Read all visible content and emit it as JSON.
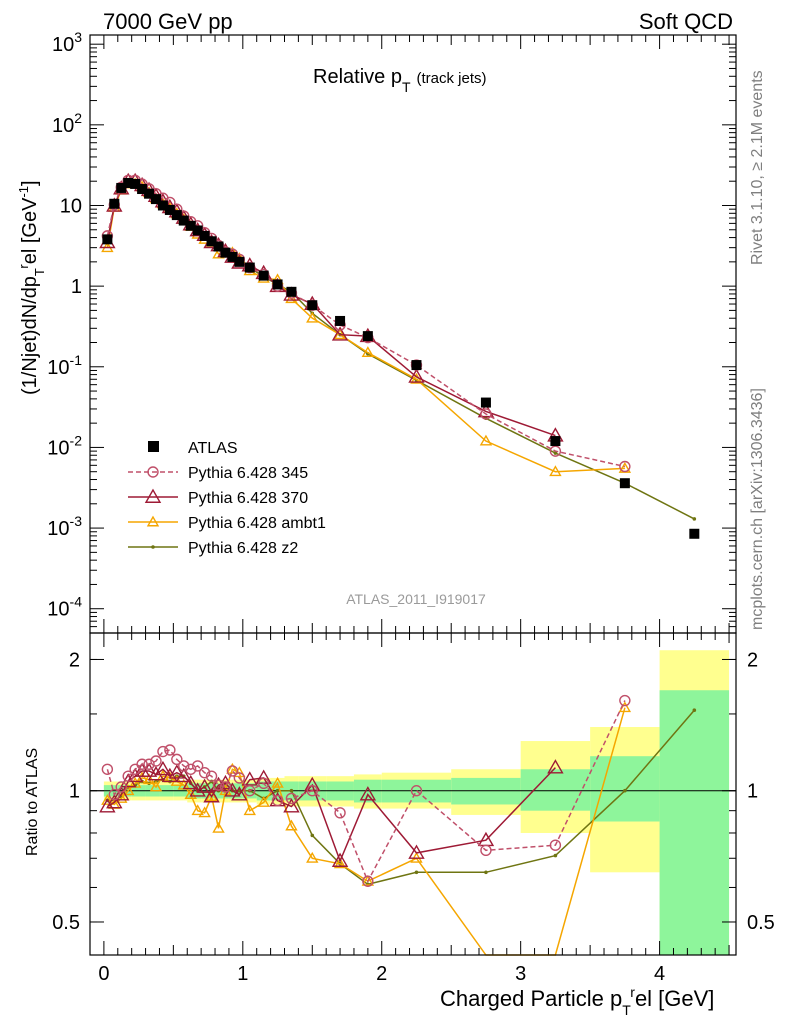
{
  "header": {
    "left": "7000 GeV pp",
    "right": "Soft QCD"
  },
  "side_labels": {
    "rivet": "Rivet 3.1.10, ≥ 2.1M events",
    "mcplots": "mcplots.cern.ch [arXiv:1306.3436]"
  },
  "analysis_id": "ATLAS_2011_I919017",
  "title": {
    "main": "Relative p",
    "sub": "T",
    "suffix": "(track jets)"
  },
  "colors": {
    "ATLAS": "#000000",
    "p345": "#c0506a",
    "p370": "#9e1a35",
    "ambt1": "#f5a600",
    "z2": "#6f7512",
    "band_inner": "#8ef59b",
    "band_outer": "#ffff8f"
  },
  "chart_data": [
    {
      "type": "scatter",
      "panel": "main",
      "ylabel": "(1/Njet)dN/dp_T^rel [GeV^-1]",
      "yscale": "log",
      "ylim": [
        5e-05,
        1300
      ],
      "xlim": [
        -0.1,
        4.55
      ],
      "yticks": [
        "10^-4",
        "10^-3",
        "10^-2",
        "10^-1",
        "1",
        "10",
        "10^2",
        "10^3"
      ],
      "legend": {
        "placement": "left-center",
        "entries": [
          "ATLAS",
          "Pythia 6.428 345",
          "Pythia 6.428 370",
          "Pythia 6.428 ambt1",
          "Pythia 6.428 z2"
        ]
      },
      "series": [
        {
          "name": "ATLAS",
          "x": [
            0.025,
            0.075,
            0.125,
            0.175,
            0.225,
            0.275,
            0.325,
            0.375,
            0.425,
            0.475,
            0.525,
            0.575,
            0.625,
            0.675,
            0.725,
            0.775,
            0.825,
            0.875,
            0.925,
            0.975,
            1.05,
            1.15,
            1.25,
            1.35,
            1.5,
            1.7,
            1.9,
            2.25,
            2.75,
            3.25,
            3.75,
            4.25
          ],
          "y": [
            3.8,
            10.5,
            16.5,
            19,
            18.5,
            16,
            14,
            12,
            10,
            8.8,
            7.6,
            6.5,
            5.6,
            4.9,
            4.2,
            3.6,
            3.1,
            2.6,
            2.3,
            2.0,
            1.7,
            1.35,
            1.05,
            0.85,
            0.58,
            0.37,
            0.24,
            0.105,
            0.036,
            0.012,
            0.0036,
            0.00085
          ]
        },
        {
          "name": "Pythia 6.428 345",
          "style": "dashed-circle",
          "x": [
            0.025,
            0.075,
            0.125,
            0.175,
            0.225,
            0.275,
            0.325,
            0.375,
            0.425,
            0.475,
            0.525,
            0.575,
            0.625,
            0.675,
            0.725,
            0.775,
            0.825,
            0.875,
            0.925,
            0.975,
            1.05,
            1.15,
            1.25,
            1.35,
            1.5,
            1.7,
            1.9,
            2.25,
            2.75,
            3.25,
            3.75
          ],
          "y": [
            4.2,
            10.2,
            16.8,
            20.5,
            20.5,
            18.4,
            16.1,
            14.0,
            12.3,
            10.9,
            9.0,
            7.4,
            6.3,
            5.6,
            4.6,
            3.9,
            3.2,
            2.65,
            2.5,
            2.15,
            1.7,
            1.4,
            1.0,
            0.82,
            0.58,
            0.33,
            0.23,
            0.105,
            0.026,
            0.009,
            0.0058
          ]
        },
        {
          "name": "Pythia 6.428 370",
          "style": "solid-triangle",
          "x": [
            0.025,
            0.075,
            0.125,
            0.175,
            0.225,
            0.275,
            0.325,
            0.375,
            0.425,
            0.475,
            0.525,
            0.575,
            0.625,
            0.675,
            0.725,
            0.775,
            0.825,
            0.875,
            0.925,
            0.975,
            1.05,
            1.15,
            1.25,
            1.35,
            1.5,
            1.7,
            1.9,
            2.25,
            2.75,
            3.25
          ],
          "y": [
            3.5,
            9.9,
            16.2,
            20.0,
            20.0,
            17.8,
            15.5,
            13.1,
            11.2,
            9.5,
            8.4,
            7.0,
            5.8,
            4.9,
            4.3,
            3.5,
            3.2,
            2.7,
            2.3,
            1.95,
            1.8,
            1.45,
            1.0,
            0.78,
            0.6,
            0.25,
            0.24,
            0.075,
            0.028,
            0.014
          ]
        },
        {
          "name": "Pythia 6.428 ambt1",
          "style": "solid-triangle",
          "x": [
            0.025,
            0.075,
            0.125,
            0.175,
            0.225,
            0.275,
            0.325,
            0.375,
            0.425,
            0.475,
            0.525,
            0.575,
            0.625,
            0.675,
            0.725,
            0.775,
            0.825,
            0.875,
            0.925,
            0.975,
            1.05,
            1.15,
            1.25,
            1.35,
            1.5,
            1.7,
            1.9,
            2.25,
            2.75,
            3.25,
            3.75
          ],
          "y": [
            3.0,
            9.5,
            15.5,
            18.5,
            18.5,
            17.0,
            14.4,
            12.1,
            10.5,
            9.2,
            7.9,
            6.7,
            5.5,
            4.4,
            3.8,
            3.5,
            2.5,
            2.6,
            2.6,
            2.2,
            1.55,
            1.25,
            1.2,
            0.7,
            0.4,
            0.25,
            0.15,
            0.07,
            0.012,
            0.005,
            0.0055
          ]
        },
        {
          "name": "Pythia 6.428 z2",
          "style": "solid-dot",
          "x": [
            0.025,
            0.075,
            0.125,
            0.175,
            0.225,
            0.275,
            0.325,
            0.375,
            0.425,
            0.475,
            0.525,
            0.575,
            0.625,
            0.675,
            0.725,
            0.775,
            0.825,
            0.875,
            0.925,
            0.975,
            1.05,
            1.15,
            1.25,
            1.35,
            1.5,
            1.7,
            1.9,
            2.25,
            2.75,
            3.25,
            3.75,
            4.25
          ],
          "y": [
            3.6,
            10.0,
            16.0,
            19.4,
            19.0,
            16.8,
            14.5,
            12.6,
            10.6,
            9.2,
            8.2,
            7.0,
            5.8,
            4.9,
            4.3,
            3.8,
            3.1,
            2.7,
            2.3,
            2.0,
            1.7,
            1.3,
            1.05,
            0.85,
            0.46,
            0.25,
            0.145,
            0.068,
            0.023,
            0.0085,
            0.0036,
            0.0013
          ]
        }
      ]
    },
    {
      "type": "line",
      "panel": "ratio",
      "ylabel": "Ratio to ATLAS",
      "xlabel": "Charged Particle p_T^rel [GeV]",
      "ylim": [
        0.42,
        2.3
      ],
      "xlim": [
        -0.1,
        4.55
      ],
      "xticks": [
        "0",
        "1",
        "2",
        "3",
        "4"
      ],
      "yticks": [
        "0.5",
        "1",
        "2"
      ],
      "bands": {
        "edges": [
          0.0,
          0.1,
          0.2,
          0.3,
          0.4,
          0.5,
          0.6,
          0.7,
          0.8,
          0.9,
          1.0,
          1.1,
          1.2,
          1.3,
          1.4,
          1.6,
          1.8,
          2.0,
          2.5,
          3.0,
          3.5,
          4.0,
          4.5
        ],
        "inner_low": [
          0.97,
          0.97,
          0.97,
          0.97,
          0.97,
          0.97,
          0.96,
          0.96,
          0.96,
          0.96,
          0.96,
          0.95,
          0.95,
          0.95,
          0.95,
          0.95,
          0.94,
          0.94,
          0.93,
          0.9,
          0.85,
          0.35
        ],
        "inner_high": [
          1.03,
          1.03,
          1.03,
          1.03,
          1.03,
          1.03,
          1.04,
          1.04,
          1.04,
          1.04,
          1.04,
          1.05,
          1.05,
          1.05,
          1.05,
          1.05,
          1.06,
          1.06,
          1.07,
          1.12,
          1.2,
          1.7
        ],
        "outer_low": [
          0.95,
          0.95,
          0.95,
          0.95,
          0.95,
          0.95,
          0.94,
          0.94,
          0.94,
          0.94,
          0.94,
          0.93,
          0.93,
          0.92,
          0.92,
          0.92,
          0.91,
          0.91,
          0.88,
          0.8,
          0.65,
          0.33
        ],
        "outer_high": [
          1.05,
          1.05,
          1.05,
          1.05,
          1.05,
          1.05,
          1.06,
          1.06,
          1.06,
          1.06,
          1.06,
          1.07,
          1.07,
          1.08,
          1.08,
          1.08,
          1.09,
          1.1,
          1.12,
          1.3,
          1.4,
          2.1
        ]
      },
      "series": [
        {
          "name": "Pythia 6.428 345",
          "x": [
            0.025,
            0.075,
            0.125,
            0.175,
            0.225,
            0.275,
            0.325,
            0.375,
            0.425,
            0.475,
            0.525,
            0.575,
            0.625,
            0.675,
            0.725,
            0.775,
            0.825,
            0.875,
            0.925,
            0.975,
            1.05,
            1.15,
            1.25,
            1.35,
            1.5,
            1.7,
            1.9,
            2.25,
            2.75,
            3.25,
            3.75
          ],
          "y": [
            1.12,
            0.98,
            1.02,
            1.08,
            1.12,
            1.15,
            1.15,
            1.17,
            1.23,
            1.24,
            1.18,
            1.14,
            1.12,
            1.14,
            1.1,
            1.08,
            1.03,
            1.02,
            1.11,
            1.07,
            1.0,
            1.04,
            0.95,
            0.96,
            1.0,
            0.89,
            0.62,
            1.0,
            0.73,
            0.75,
            1.61
          ]
        },
        {
          "name": "Pythia 6.428 370",
          "x": [
            0.025,
            0.075,
            0.125,
            0.175,
            0.225,
            0.275,
            0.325,
            0.375,
            0.425,
            0.475,
            0.525,
            0.575,
            0.625,
            0.675,
            0.725,
            0.775,
            0.825,
            0.875,
            0.925,
            0.975,
            1.05,
            1.15,
            1.25,
            1.35,
            1.5,
            1.7,
            1.9,
            2.25,
            2.75,
            3.25
          ],
          "y": [
            0.92,
            0.94,
            0.98,
            1.05,
            1.08,
            1.11,
            1.11,
            1.09,
            1.12,
            1.08,
            1.1,
            1.08,
            1.04,
            1.0,
            1.02,
            0.97,
            1.03,
            1.04,
            1.0,
            0.98,
            1.06,
            1.07,
            0.95,
            0.92,
            1.03,
            0.69,
            0.98,
            0.72,
            0.77,
            1.13
          ]
        },
        {
          "name": "Pythia 6.428 ambt1",
          "x": [
            0.025,
            0.075,
            0.125,
            0.175,
            0.225,
            0.275,
            0.325,
            0.375,
            0.425,
            0.475,
            0.525,
            0.575,
            0.625,
            0.675,
            0.725,
            0.775,
            0.825,
            0.875,
            0.925,
            0.975,
            1.05,
            1.15,
            1.25,
            1.35,
            1.5,
            1.7,
            1.9,
            2.25,
            2.75,
            3.25,
            3.75
          ],
          "y": [
            0.95,
            0.93,
            0.96,
            1.0,
            1.04,
            1.07,
            1.06,
            1.02,
            1.08,
            1.07,
            1.05,
            1.03,
            0.98,
            0.9,
            0.89,
            0.97,
            0.82,
            1.0,
            1.12,
            1.1,
            0.9,
            0.94,
            1.04,
            0.83,
            0.7,
            0.68,
            0.62,
            0.7,
            0.3,
            0.38,
            1.55
          ]
        },
        {
          "name": "Pythia 6.428 z2",
          "x": [
            0.025,
            0.075,
            0.125,
            0.175,
            0.225,
            0.275,
            0.325,
            0.375,
            0.425,
            0.475,
            0.525,
            0.575,
            0.625,
            0.675,
            0.725,
            0.775,
            0.825,
            0.875,
            0.925,
            0.975,
            1.05,
            1.15,
            1.25,
            1.35,
            1.5,
            1.7,
            1.9,
            2.25,
            2.75,
            3.25,
            3.75,
            4.25
          ],
          "y": [
            0.95,
            0.95,
            0.97,
            1.02,
            1.03,
            1.05,
            1.04,
            1.05,
            1.06,
            1.05,
            1.08,
            1.08,
            1.04,
            1.0,
            1.02,
            1.05,
            1.0,
            1.04,
            1.0,
            1.0,
            1.0,
            0.96,
            1.0,
            1.0,
            0.79,
            0.68,
            0.61,
            0.65,
            0.65,
            0.71,
            1.0,
            1.53
          ]
        }
      ]
    }
  ]
}
